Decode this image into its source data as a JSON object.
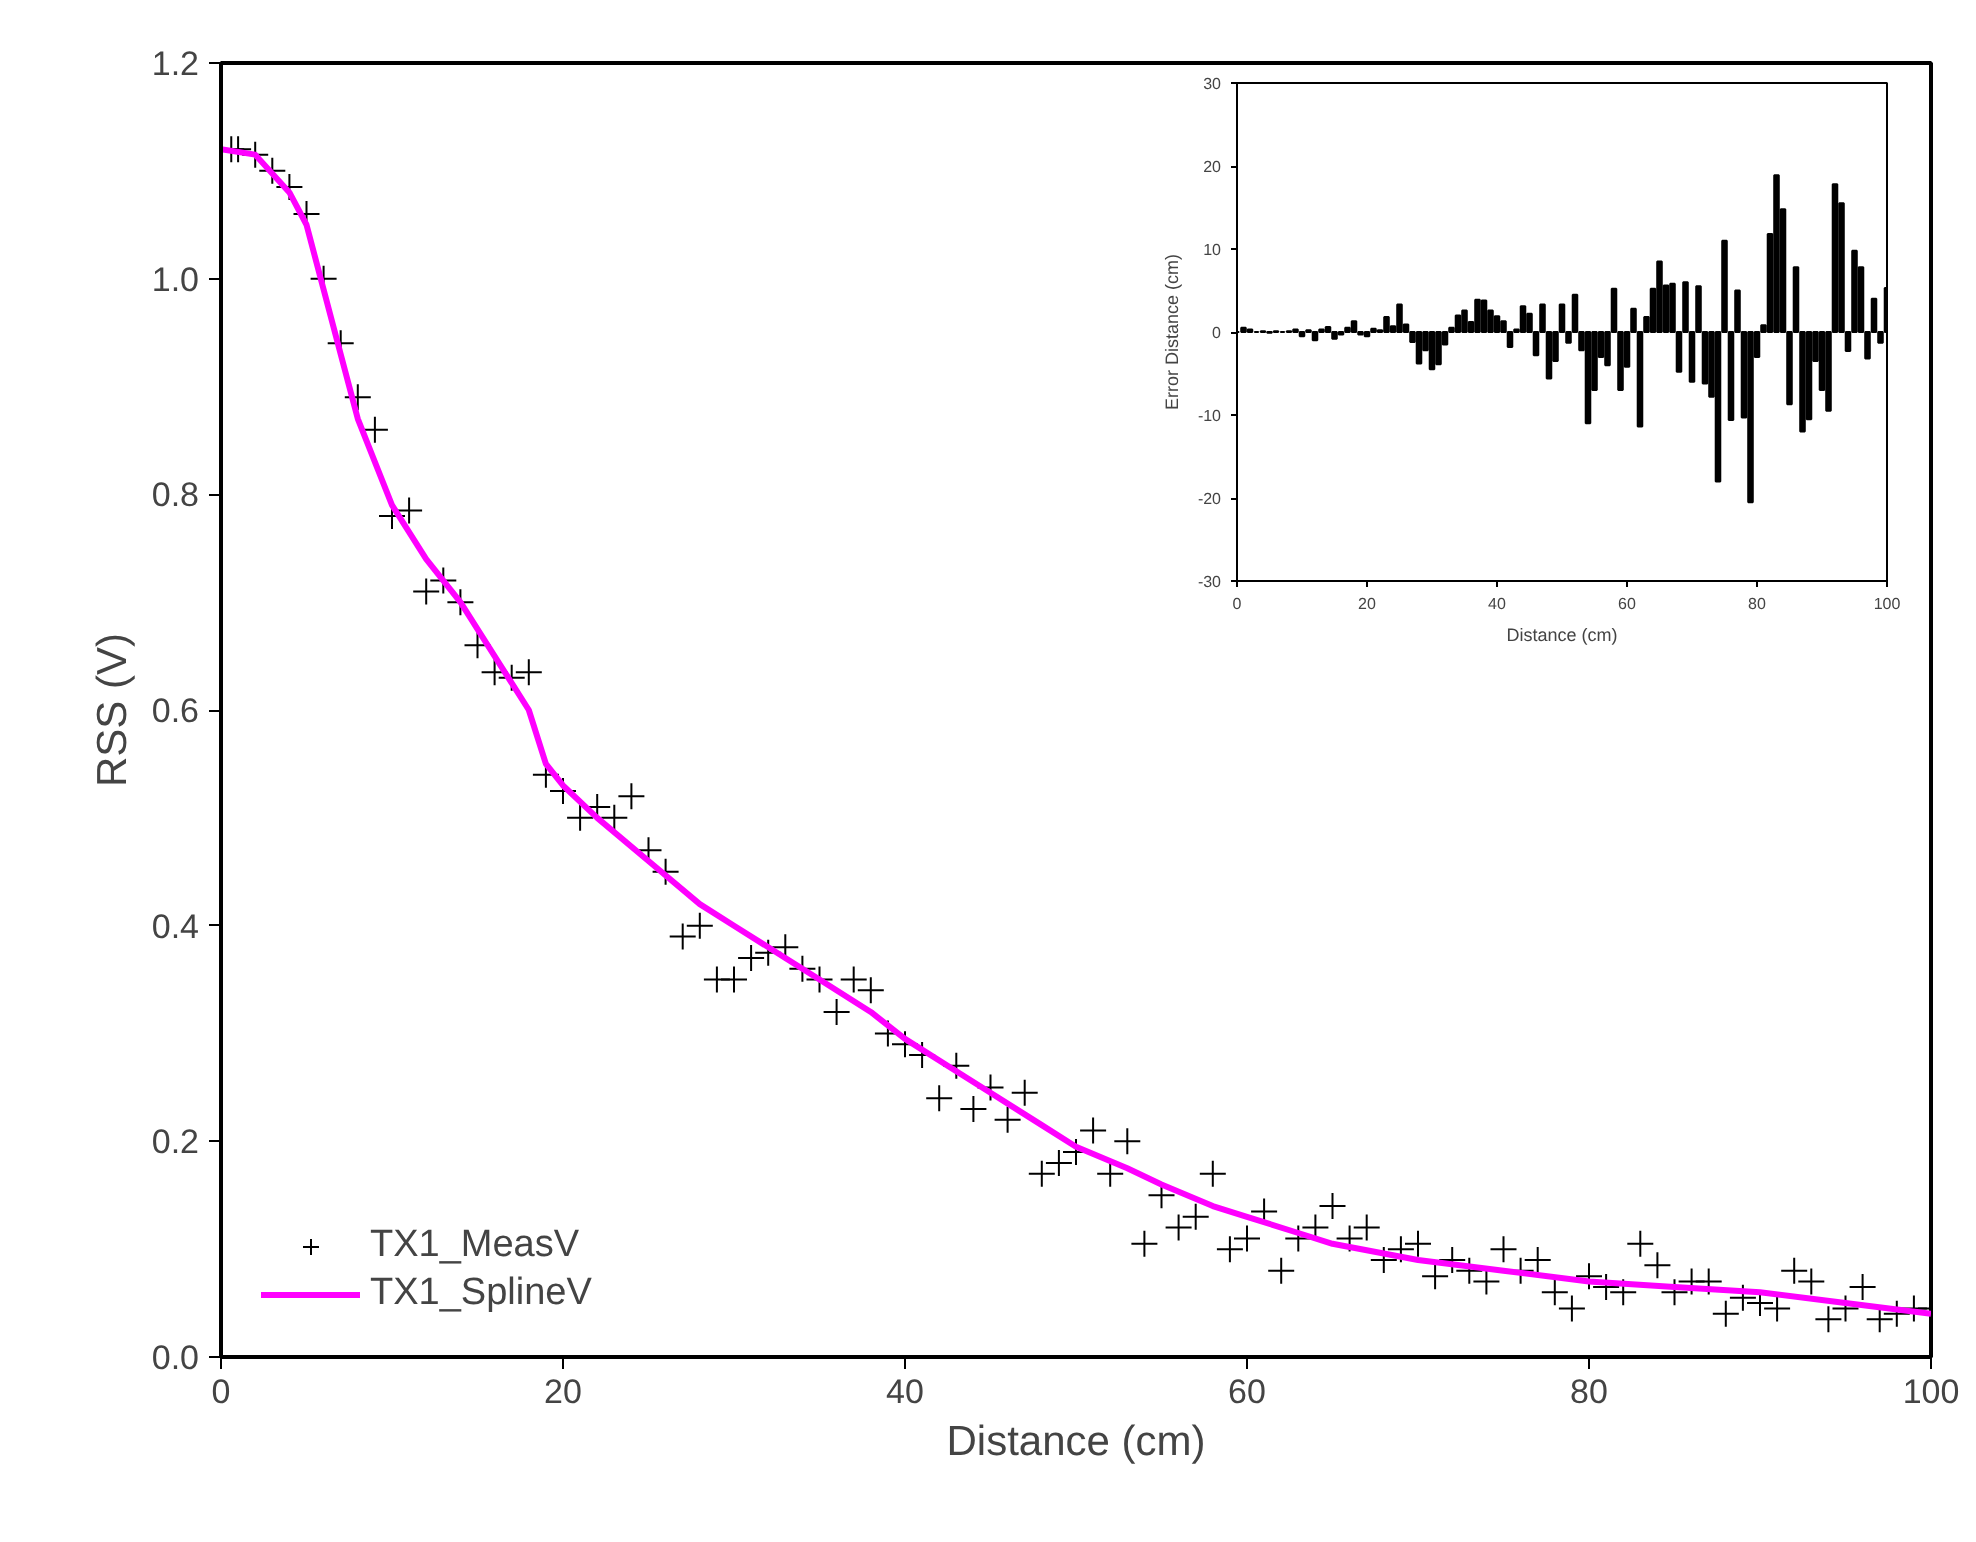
{
  "chart_data": [
    {
      "type": "scatter",
      "xlabel": "Distance (cm)",
      "ylabel": "RSS (V)",
      "xlim": [
        0,
        100
      ],
      "ylim": [
        0,
        1.2
      ],
      "xticks": [
        0,
        20,
        40,
        60,
        80,
        100
      ],
      "yticks": [
        {
          "value": 0,
          "label": "0.0"
        },
        {
          "value": 0.2,
          "label": "0.2"
        },
        {
          "value": 0.4,
          "label": "0.4"
        },
        {
          "value": 0.6,
          "label": "0.6"
        },
        {
          "value": 0.8,
          "label": "0.8"
        },
        {
          "value": 1.0,
          "label": "1.0"
        },
        {
          "value": 1.2,
          "label": "1.2"
        }
      ],
      "grid": false,
      "legend": "bottom left",
      "series": [
        {
          "name": "TX1_MeasV",
          "type": "scatter",
          "marker": "cross",
          "color": "#000000",
          "x": [
            0.6,
            1,
            2,
            3,
            4,
            5,
            6,
            7,
            8,
            9,
            10,
            11,
            12,
            13,
            14,
            15,
            16,
            17,
            18,
            19,
            20,
            21,
            22,
            23,
            24,
            25,
            26,
            27,
            28,
            29,
            30,
            31,
            32,
            33,
            34,
            35,
            36,
            37,
            38,
            39,
            40,
            41,
            42,
            43,
            44,
            45,
            46,
            47,
            48,
            49,
            50,
            51,
            52,
            53,
            54,
            55,
            56,
            57,
            58,
            59,
            60,
            61,
            62,
            63,
            64,
            65,
            66,
            67,
            68,
            69,
            70,
            71,
            72,
            73,
            74,
            75,
            76,
            77,
            78,
            79,
            80,
            81,
            82,
            83,
            84,
            85,
            86,
            87,
            88,
            89,
            90,
            91,
            92,
            93,
            94,
            95,
            96,
            97,
            98,
            99,
            100
          ],
          "values": [
            1.12,
            1.12,
            1.115,
            1.1,
            1.085,
            1.06,
            1.0,
            0.94,
            0.89,
            0.86,
            0.78,
            0.785,
            0.71,
            0.72,
            0.7,
            0.66,
            0.635,
            0.63,
            0.635,
            0.54,
            0.525,
            0.5,
            0.51,
            0.5,
            0.52,
            0.47,
            0.45,
            0.39,
            0.4,
            0.35,
            0.35,
            0.37,
            0.375,
            0.38,
            0.36,
            0.35,
            0.32,
            0.35,
            0.34,
            0.3,
            0.29,
            0.28,
            0.24,
            0.27,
            0.23,
            0.25,
            0.22,
            0.245,
            0.17,
            0.18,
            0.19,
            0.21,
            0.17,
            0.2,
            0.105,
            0.15,
            0.12,
            0.13,
            0.17,
            0.1,
            0.11,
            0.135,
            0.08,
            0.11,
            0.12,
            0.14,
            0.11,
            0.12,
            0.09,
            0.1,
            0.105,
            0.075,
            0.09,
            0.08,
            0.07,
            0.1,
            0.08,
            0.09,
            0.06,
            0.045,
            0.075,
            0.065,
            0.06,
            0.105,
            0.085,
            0.06,
            0.07,
            0.07,
            0.04,
            0.055,
            0.05,
            0.045,
            0.08,
            0.07,
            0.035,
            0.045,
            0.065,
            0.035,
            0.04,
            0.045,
            0.045
          ]
        },
        {
          "name": "TX1_SplineV",
          "type": "line",
          "marker": "none",
          "color": "#ff00ff",
          "line_style": "solid",
          "x": [
            0,
            2,
            4,
            5,
            6,
            7,
            8,
            10,
            12,
            14,
            16,
            18,
            19,
            20,
            22,
            25,
            28,
            30,
            33,
            35,
            38,
            40,
            43,
            45,
            48,
            50,
            53,
            55,
            58,
            60,
            63,
            65,
            70,
            75,
            80,
            85,
            90,
            95,
            100
          ],
          "values": [
            1.12,
            1.115,
            1.08,
            1.05,
            0.99,
            0.93,
            0.87,
            0.79,
            0.74,
            0.7,
            0.65,
            0.6,
            0.55,
            0.53,
            0.5,
            0.46,
            0.42,
            0.4,
            0.37,
            0.35,
            0.32,
            0.295,
            0.265,
            0.245,
            0.215,
            0.195,
            0.175,
            0.16,
            0.14,
            0.13,
            0.115,
            0.105,
            0.09,
            0.08,
            0.07,
            0.065,
            0.06,
            0.05,
            0.04
          ]
        }
      ]
    },
    {
      "type": "bar",
      "xlabel": "Distance (cm)",
      "ylabel": "Error Distance (cm)",
      "xlim": [
        0,
        100
      ],
      "ylim": [
        -30,
        30
      ],
      "xticks": [
        0,
        20,
        40,
        60,
        80,
        100
      ],
      "yticks": [
        -30,
        -20,
        -10,
        0,
        10,
        20,
        30
      ],
      "grid": false,
      "x": [
        0,
        1,
        2,
        3,
        4,
        5,
        6,
        7,
        8,
        9,
        10,
        11,
        12,
        13,
        14,
        15,
        16,
        17,
        18,
        19,
        20,
        21,
        22,
        23,
        24,
        25,
        26,
        27,
        28,
        29,
        30,
        31,
        32,
        33,
        34,
        35,
        36,
        37,
        38,
        39,
        40,
        41,
        42,
        43,
        44,
        45,
        46,
        47,
        48,
        49,
        50,
        51,
        52,
        53,
        54,
        55,
        56,
        57,
        58,
        59,
        60,
        61,
        62,
        63,
        64,
        65,
        66,
        67,
        68,
        69,
        70,
        71,
        72,
        73,
        74,
        75,
        76,
        77,
        78,
        79,
        80,
        81,
        82,
        83,
        84,
        85,
        86,
        87,
        88,
        89,
        90,
        91,
        92,
        93,
        94,
        95,
        96,
        97,
        98,
        99,
        100
      ],
      "values": [
        0,
        0.5,
        0.3,
        0,
        0.1,
        -0.1,
        0.1,
        0,
        0.1,
        0.3,
        -0.5,
        0.2,
        -1,
        0.3,
        0.6,
        -0.8,
        -0.3,
        0.5,
        1.3,
        -0.3,
        -0.5,
        0.4,
        0.2,
        1.8,
        0.7,
        3.3,
        0.9,
        -1.2,
        -3.8,
        -2.2,
        -4.5,
        -3.9,
        -1.5,
        0.5,
        2,
        2.6,
        1.2,
        3.9,
        3.8,
        2.6,
        1.9,
        1.3,
        -1.8,
        0.3,
        3.1,
        2.2,
        -2.8,
        3.3,
        -5.6,
        -3.5,
        3.3,
        -1.3,
        4.5,
        -2.2,
        -11,
        -7,
        -3,
        -4,
        5.2,
        -7,
        -4.2,
        2.8,
        -11.4,
        1.8,
        5.2,
        8.5,
        5.6,
        5.8,
        -4.8,
        6,
        -6,
        5.5,
        -6.2,
        -7.8,
        -18,
        11,
        -10.6,
        5,
        -10.3,
        -20.5,
        -3,
        0.8,
        11.8,
        18.9,
        14.8,
        -8.7,
        7.8,
        -12,
        -10.5,
        -3.5,
        -7,
        -9.5,
        17.8,
        15.5,
        -2.3,
        9.8,
        7.8,
        -3.2,
        4,
        -1.3,
        5.3
      ],
      "color": "#000000"
    }
  ]
}
